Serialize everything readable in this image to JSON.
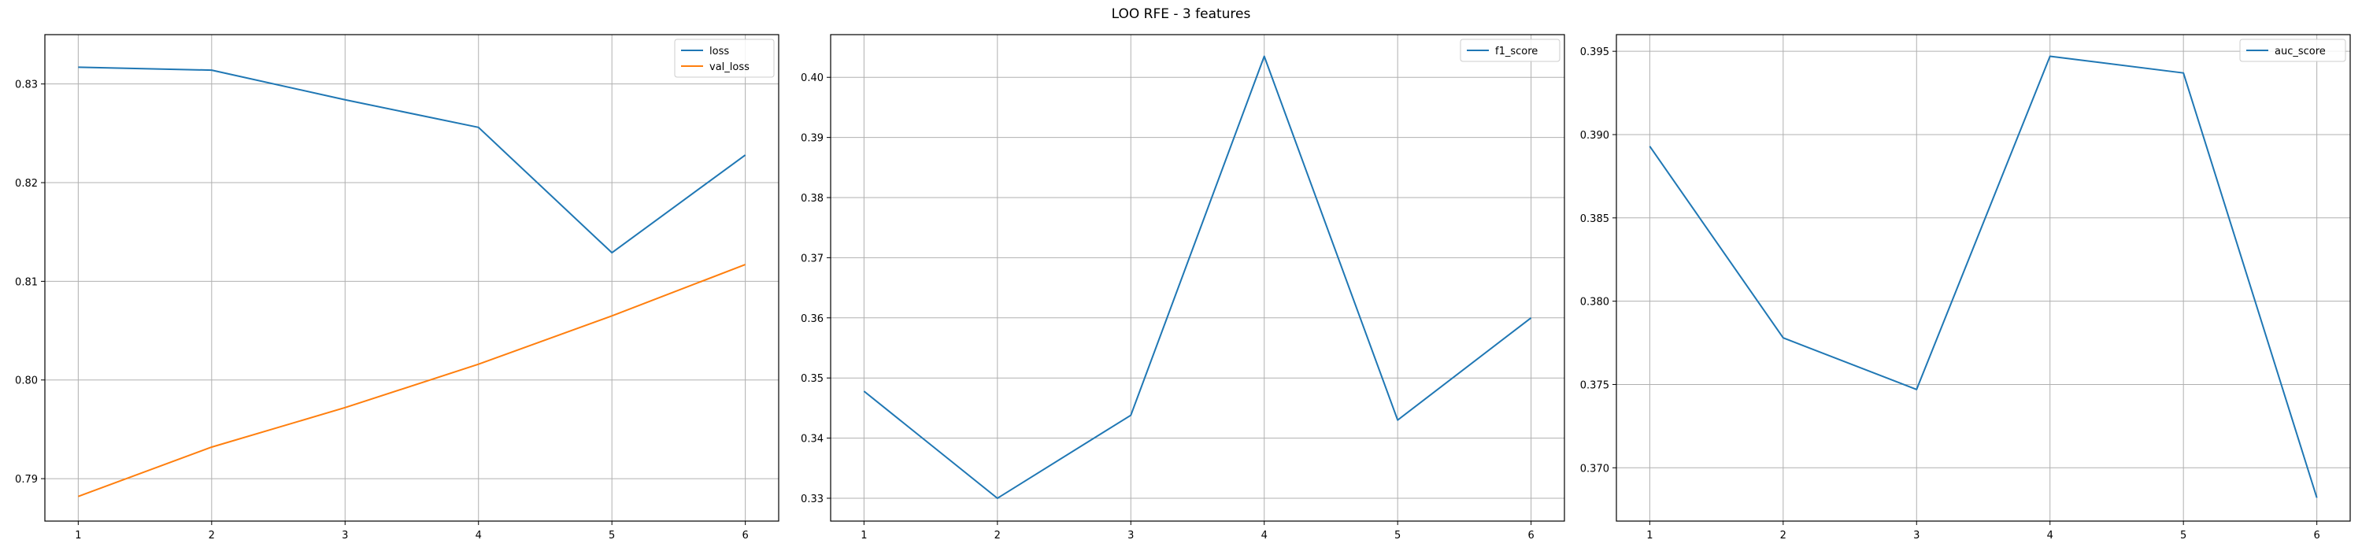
{
  "suptitle": "LOO RFE - 3 features",
  "colors": {
    "loss": "#1f77b4",
    "val_loss": "#ff7f0e",
    "grid": "#b0b0b0",
    "axes": "#000000"
  },
  "chart_data": [
    {
      "type": "line",
      "title": "",
      "xlabel": "",
      "ylabel": "",
      "x": [
        1,
        2,
        3,
        4,
        5,
        6
      ],
      "xlim": [
        0.75,
        6.25
      ],
      "ylim": [
        0.7857,
        0.835
      ],
      "yticks": [
        0.79,
        0.8,
        0.81,
        0.82,
        0.83
      ],
      "ytick_labels": [
        "0.79",
        "0.80",
        "0.81",
        "0.82",
        "0.83"
      ],
      "xticks": [
        1,
        2,
        3,
        4,
        5,
        6
      ],
      "xtick_labels": [
        "1",
        "2",
        "3",
        "4",
        "5",
        "6"
      ],
      "grid": true,
      "legend_position": "top-right",
      "series": [
        {
          "name": "loss",
          "color": "#1f77b4",
          "values": [
            0.8317,
            0.8314,
            0.8284,
            0.8256,
            0.8129,
            0.8228
          ]
        },
        {
          "name": "val_loss",
          "color": "#ff7f0e",
          "values": [
            0.7882,
            0.7932,
            0.7972,
            0.8016,
            0.8065,
            0.8117
          ]
        }
      ]
    },
    {
      "type": "line",
      "title": "",
      "xlabel": "",
      "ylabel": "",
      "x": [
        1,
        2,
        3,
        4,
        5,
        6
      ],
      "xlim": [
        0.75,
        6.25
      ],
      "ylim": [
        0.3262,
        0.4071
      ],
      "yticks": [
        0.33,
        0.34,
        0.35,
        0.36,
        0.37,
        0.38,
        0.39,
        0.4
      ],
      "ytick_labels": [
        "0.33",
        "0.34",
        "0.35",
        "0.36",
        "0.37",
        "0.38",
        "0.39",
        "0.40"
      ],
      "xticks": [
        1,
        2,
        3,
        4,
        5,
        6
      ],
      "xtick_labels": [
        "1",
        "2",
        "3",
        "4",
        "5",
        "6"
      ],
      "grid": true,
      "legend_position": "top-right",
      "series": [
        {
          "name": "f1_score",
          "color": "#1f77b4",
          "values": [
            0.3478,
            0.33,
            0.3438,
            0.4035,
            0.343,
            0.36
          ]
        }
      ]
    },
    {
      "type": "line",
      "title": "",
      "xlabel": "",
      "ylabel": "",
      "x": [
        1,
        2,
        3,
        4,
        5,
        6
      ],
      "xlim": [
        0.75,
        6.25
      ],
      "ylim": [
        0.3668,
        0.396
      ],
      "yticks": [
        0.37,
        0.375,
        0.38,
        0.385,
        0.39,
        0.395
      ],
      "ytick_labels": [
        "0.370",
        "0.375",
        "0.380",
        "0.385",
        "0.390",
        "0.395"
      ],
      "xticks": [
        1,
        2,
        3,
        4,
        5,
        6
      ],
      "xtick_labels": [
        "1",
        "2",
        "3",
        "4",
        "5",
        "6"
      ],
      "grid": true,
      "legend_position": "top-right",
      "series": [
        {
          "name": "auc_score",
          "color": "#1f77b4",
          "values": [
            0.3893,
            0.3778,
            0.3747,
            0.3947,
            0.3937,
            0.3682
          ]
        }
      ]
    }
  ]
}
